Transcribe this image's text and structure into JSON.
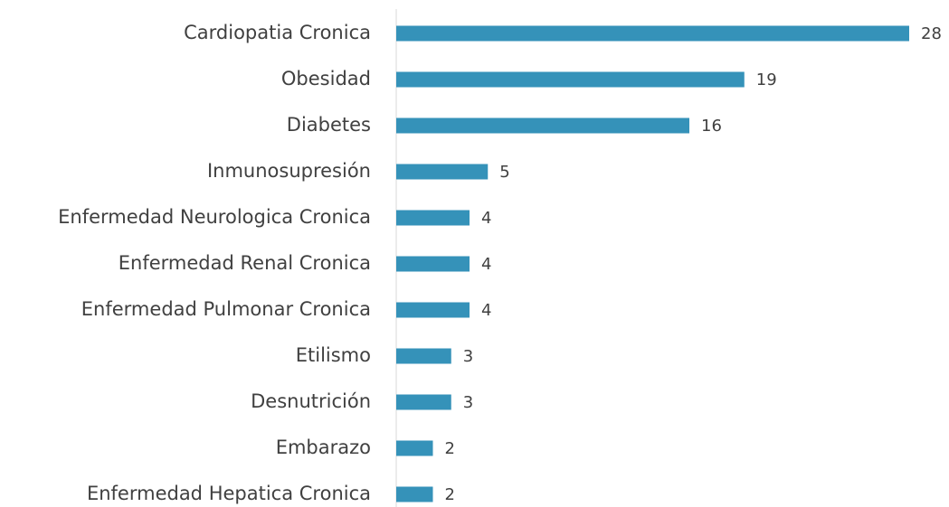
{
  "chart_data": {
    "type": "bar",
    "orientation": "horizontal",
    "categories": [
      "Cardiopatia Cronica",
      "Obesidad",
      "Diabetes",
      "Inmunosupresión",
      "Enfermedad Neurologica Cronica",
      "Enfermedad Renal Cronica",
      "Enfermedad Pulmonar Cronica",
      "Etilismo",
      "Desnutrición",
      "Embarazo",
      "Enfermedad Hepatica Cronica"
    ],
    "values": [
      28,
      19,
      16,
      5,
      4,
      4,
      4,
      3,
      3,
      2,
      2
    ],
    "color": "#3592b9"
  }
}
